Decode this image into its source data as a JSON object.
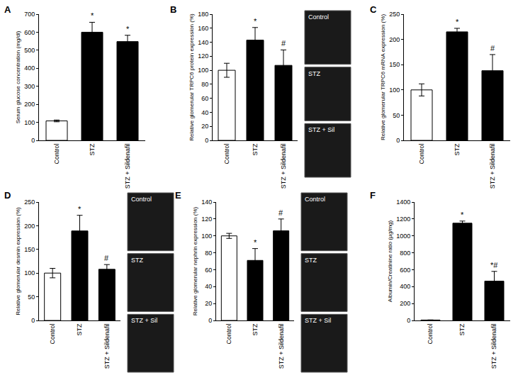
{
  "chart_data": [
    {
      "type": "bar",
      "title": "A",
      "y_label": "Serum glucose concentration (mg/dl)",
      "categories": [
        "Control",
        "STZ",
        "STZ + Sildenafil"
      ],
      "values": [
        108,
        600,
        548
      ],
      "errors": [
        5,
        55,
        35
      ],
      "colors": [
        "#ffffff",
        "#000000",
        "#000000"
      ],
      "significance": [
        null,
        "*",
        "*"
      ],
      "ylim": [
        0,
        700
      ],
      "yticks": [
        0,
        100,
        200,
        300,
        400,
        500,
        600,
        700
      ],
      "grid": false
    },
    {
      "type": "bar",
      "title": "B",
      "y_label": "Relative glomerular TRPC6 protein expression (%)",
      "categories": [
        "Control",
        "STZ",
        "STZ + Sildenafil"
      ],
      "values": [
        100,
        143,
        107
      ],
      "errors": [
        10,
        18,
        22
      ],
      "colors": [
        "#ffffff",
        "#000000",
        "#000000"
      ],
      "significance": [
        null,
        "*",
        "#"
      ],
      "ylim": [
        0,
        180
      ],
      "yticks": [
        0,
        20,
        40,
        60,
        80,
        100,
        120,
        140,
        160,
        180
      ],
      "grid": false,
      "image_labels": [
        "Control",
        "STZ",
        "STZ + Sil"
      ]
    },
    {
      "type": "bar",
      "title": "C",
      "y_label": "Relative glomerular TRPC6 mRNA expression (%)",
      "categories": [
        "Control",
        "STZ",
        "STZ + Sildenafil"
      ],
      "values": [
        100,
        215,
        138
      ],
      "errors": [
        12,
        7,
        32
      ],
      "colors": [
        "#ffffff",
        "#000000",
        "#000000"
      ],
      "significance": [
        null,
        "*",
        "#"
      ],
      "ylim": [
        0,
        250
      ],
      "yticks": [
        0,
        50,
        100,
        150,
        200,
        250
      ],
      "grid": false
    },
    {
      "type": "bar",
      "title": "D",
      "y_label": "Relative glomerular desmin expression (%)",
      "categories": [
        "Control",
        "STZ",
        "STZ + Sildenafil"
      ],
      "values": [
        100,
        189,
        108
      ],
      "errors": [
        10,
        33,
        10
      ],
      "colors": [
        "#ffffff",
        "#000000",
        "#000000"
      ],
      "significance": [
        null,
        "*",
        "#"
      ],
      "ylim": [
        0,
        250
      ],
      "yticks": [
        0,
        50,
        100,
        150,
        200,
        250
      ],
      "grid": false,
      "image_labels": [
        "Control",
        "STZ",
        "STZ + Sil"
      ]
    },
    {
      "type": "bar",
      "title": "E",
      "y_label": "Relative glomerular nephrin expression (%)",
      "categories": [
        "Control",
        "STZ",
        "STZ + Sildenafil"
      ],
      "values": [
        100,
        71,
        106
      ],
      "errors": [
        3,
        14,
        14
      ],
      "colors": [
        "#ffffff",
        "#000000",
        "#000000"
      ],
      "significance": [
        null,
        "*",
        "#"
      ],
      "ylim": [
        0,
        140
      ],
      "yticks": [
        0,
        20,
        40,
        60,
        80,
        100,
        120,
        140
      ],
      "grid": false,
      "image_labels": [
        "Control",
        "STZ",
        "STZ + Sil"
      ]
    },
    {
      "type": "bar",
      "title": "F",
      "y_label": "Albumin/Creatinine ratio (µg/mg)",
      "categories": [
        "Control",
        "STZ",
        "STZ + Sildenafil"
      ],
      "values": [
        5,
        1150,
        465
      ],
      "errors": [
        1,
        25,
        115
      ],
      "colors": [
        "#ffffff",
        "#000000",
        "#000000"
      ],
      "significance": [
        null,
        "*",
        "*#"
      ],
      "ylim": [
        0,
        1400
      ],
      "yticks": [
        0,
        200,
        400,
        600,
        800,
        1000,
        1200,
        1400
      ],
      "grid": false
    }
  ]
}
